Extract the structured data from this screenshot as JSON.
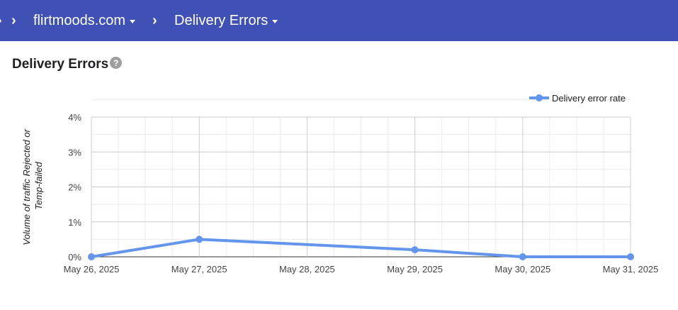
{
  "breadcrumb": {
    "items": [
      {
        "label": "flirtmoods.com"
      },
      {
        "label": "Delivery Errors"
      }
    ]
  },
  "section": {
    "title": "Delivery Errors",
    "help_icon": "question-mark-icon"
  },
  "colors": {
    "topbar": "#3f51b5",
    "series": "#6495ed"
  },
  "chart_data": {
    "type": "line",
    "title": "",
    "ylabel_lines": [
      "Volume of traffic Rejected or",
      "Temp-failed"
    ],
    "xlabel": "",
    "x": [
      "May 26, 2025",
      "May 27, 2025",
      "May 28, 2025",
      "May 29, 2025",
      "May 30, 2025",
      "May 31, 2025"
    ],
    "y_ticks": [
      "0%",
      "1%",
      "2%",
      "3%",
      "4%"
    ],
    "ylim": [
      0,
      4
    ],
    "grid": true,
    "legend_position": "top-right",
    "series": [
      {
        "name": "Delivery error rate",
        "points": [
          {
            "x": "May 26, 2025",
            "y": 0
          },
          {
            "x": "May 27, 2025",
            "y": 0.5
          },
          {
            "x": "May 29, 2025",
            "y": 0.2
          },
          {
            "x": "May 30, 2025",
            "y": 0
          },
          {
            "x": "May 31, 2025",
            "y": 0
          }
        ]
      }
    ]
  }
}
